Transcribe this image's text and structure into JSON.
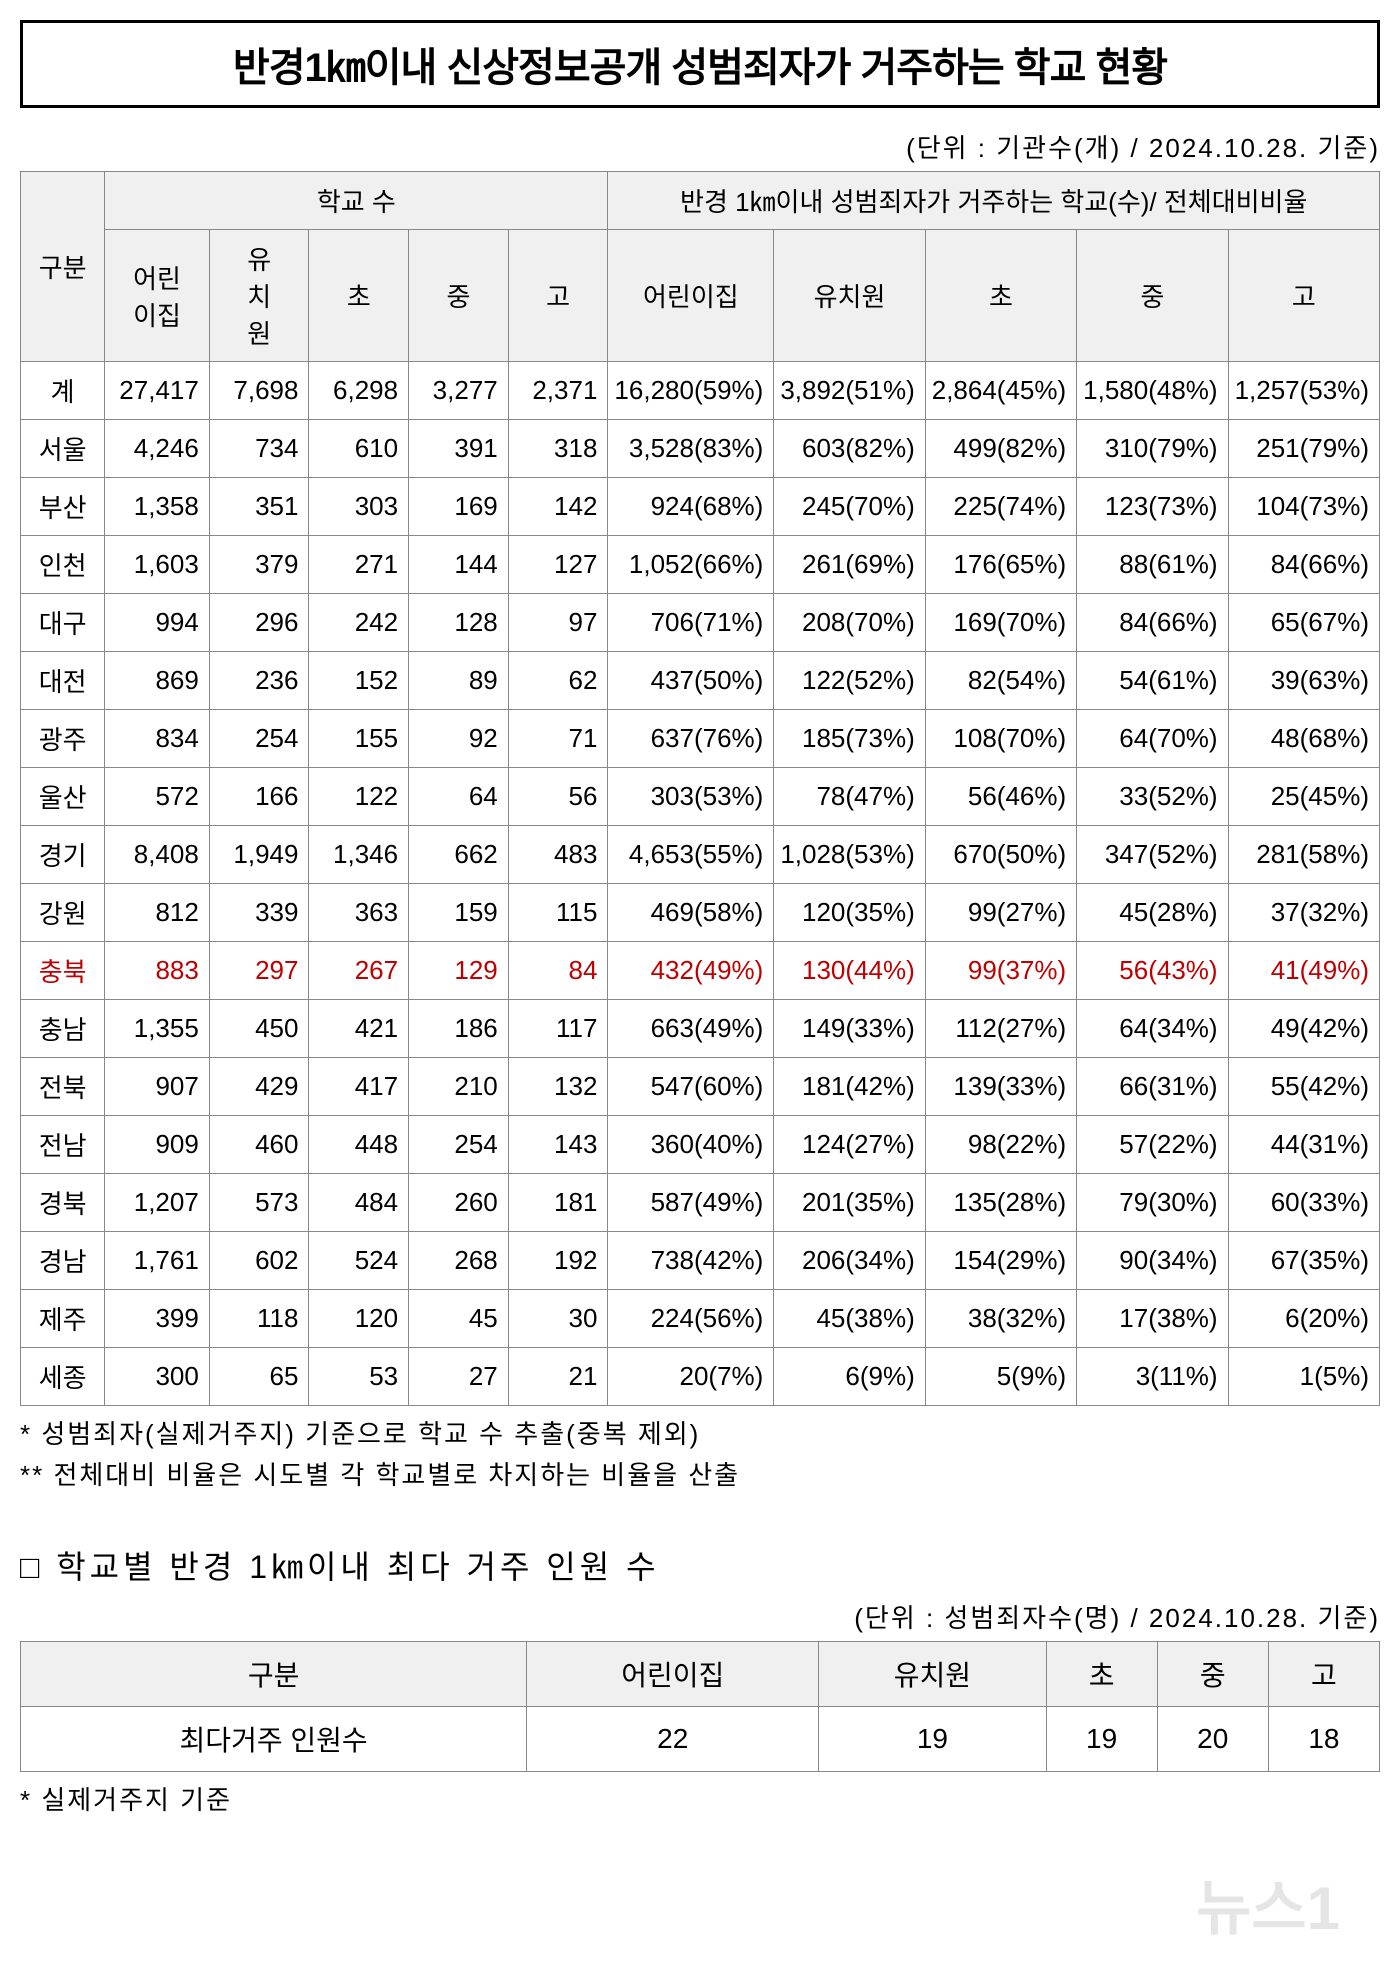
{
  "title": "반경1㎞이내 신상정보공개 성범죄자가 거주하는 학교 현황",
  "unit1": "(단위 : 기관수(개) / 2024.10.28. 기준)",
  "headers": {
    "region": "구분",
    "group1": "학교 수",
    "group2": "반경 1㎞이내  성범죄자가 거주하는 학교(수)/ 전체대비비율",
    "c1": "어린\n이집",
    "c2": "유\n치\n원",
    "c3": "초",
    "c4": "중",
    "c5": "고",
    "c6": "어린이집",
    "c7": "유치원",
    "c8": "초",
    "c9": "중",
    "c10": "고"
  },
  "rows": [
    {
      "highlight": false,
      "r": "계",
      "v": [
        "27,417",
        "7,698",
        "6,298",
        "3,277",
        "2,371",
        "16,280(59%)",
        "3,892(51%)",
        "2,864(45%)",
        "1,580(48%)",
        "1,257(53%)"
      ]
    },
    {
      "highlight": false,
      "r": "서울",
      "v": [
        "4,246",
        "734",
        "610",
        "391",
        "318",
        "3,528(83%)",
        "603(82%)",
        "499(82%)",
        "310(79%)",
        "251(79%)"
      ]
    },
    {
      "highlight": false,
      "r": "부산",
      "v": [
        "1,358",
        "351",
        "303",
        "169",
        "142",
        "924(68%)",
        "245(70%)",
        "225(74%)",
        "123(73%)",
        "104(73%)"
      ]
    },
    {
      "highlight": false,
      "r": "인천",
      "v": [
        "1,603",
        "379",
        "271",
        "144",
        "127",
        "1,052(66%)",
        "261(69%)",
        "176(65%)",
        "88(61%)",
        "84(66%)"
      ]
    },
    {
      "highlight": false,
      "r": "대구",
      "v": [
        "994",
        "296",
        "242",
        "128",
        "97",
        "706(71%)",
        "208(70%)",
        "169(70%)",
        "84(66%)",
        "65(67%)"
      ]
    },
    {
      "highlight": false,
      "r": "대전",
      "v": [
        "869",
        "236",
        "152",
        "89",
        "62",
        "437(50%)",
        "122(52%)",
        "82(54%)",
        "54(61%)",
        "39(63%)"
      ]
    },
    {
      "highlight": false,
      "r": "광주",
      "v": [
        "834",
        "254",
        "155",
        "92",
        "71",
        "637(76%)",
        "185(73%)",
        "108(70%)",
        "64(70%)",
        "48(68%)"
      ]
    },
    {
      "highlight": false,
      "r": "울산",
      "v": [
        "572",
        "166",
        "122",
        "64",
        "56",
        "303(53%)",
        "78(47%)",
        "56(46%)",
        "33(52%)",
        "25(45%)"
      ]
    },
    {
      "highlight": false,
      "r": "경기",
      "v": [
        "8,408",
        "1,949",
        "1,346",
        "662",
        "483",
        "4,653(55%)",
        "1,028(53%)",
        "670(50%)",
        "347(52%)",
        "281(58%)"
      ]
    },
    {
      "highlight": false,
      "r": "강원",
      "v": [
        "812",
        "339",
        "363",
        "159",
        "115",
        "469(58%)",
        "120(35%)",
        "99(27%)",
        "45(28%)",
        "37(32%)"
      ]
    },
    {
      "highlight": true,
      "r": "충북",
      "v": [
        "883",
        "297",
        "267",
        "129",
        "84",
        "432(49%)",
        "130(44%)",
        "99(37%)",
        "56(43%)",
        "41(49%)"
      ]
    },
    {
      "highlight": false,
      "r": "충남",
      "v": [
        "1,355",
        "450",
        "421",
        "186",
        "117",
        "663(49%)",
        "149(33%)",
        "112(27%)",
        "64(34%)",
        "49(42%)"
      ]
    },
    {
      "highlight": false,
      "r": "전북",
      "v": [
        "907",
        "429",
        "417",
        "210",
        "132",
        "547(60%)",
        "181(42%)",
        "139(33%)",
        "66(31%)",
        "55(42%)"
      ]
    },
    {
      "highlight": false,
      "r": "전남",
      "v": [
        "909",
        "460",
        "448",
        "254",
        "143",
        "360(40%)",
        "124(27%)",
        "98(22%)",
        "57(22%)",
        "44(31%)"
      ]
    },
    {
      "highlight": false,
      "r": "경북",
      "v": [
        "1,207",
        "573",
        "484",
        "260",
        "181",
        "587(49%)",
        "201(35%)",
        "135(28%)",
        "79(30%)",
        "60(33%)"
      ]
    },
    {
      "highlight": false,
      "r": "경남",
      "v": [
        "1,761",
        "602",
        "524",
        "268",
        "192",
        "738(42%)",
        "206(34%)",
        "154(29%)",
        "90(34%)",
        "67(35%)"
      ]
    },
    {
      "highlight": false,
      "r": "제주",
      "v": [
        "399",
        "118",
        "120",
        "45",
        "30",
        "224(56%)",
        "45(38%)",
        "38(32%)",
        "17(38%)",
        "6(20%)"
      ]
    },
    {
      "highlight": false,
      "r": "세종",
      "v": [
        "300",
        "65",
        "53",
        "27",
        "21",
        "20(7%)",
        "6(9%)",
        "5(9%)",
        "3(11%)",
        "1(5%)"
      ]
    }
  ],
  "footnote1": "* 성범죄자(실제거주지) 기준으로 학교 수 추출(중복 제외)",
  "footnote2": "** 전체대비 비율은 시도별 각 학교별로 차지하는 비율을 산출",
  "section2_heading": "□ 학교별 반경 1㎞이내 최다 거주 인원 수",
  "unit2": "(단위 : 성범죄자수(명) / 2024.10.28. 기준)",
  "table2": {
    "h": [
      "구분",
      "어린이집",
      "유치원",
      "초",
      "중",
      "고"
    ],
    "rlabel": "최다거주 인원수",
    "v": [
      "22",
      "19",
      "19",
      "20",
      "18"
    ]
  },
  "footnote3": "* 실제거주지 기준",
  "watermark": "뉴스1"
}
